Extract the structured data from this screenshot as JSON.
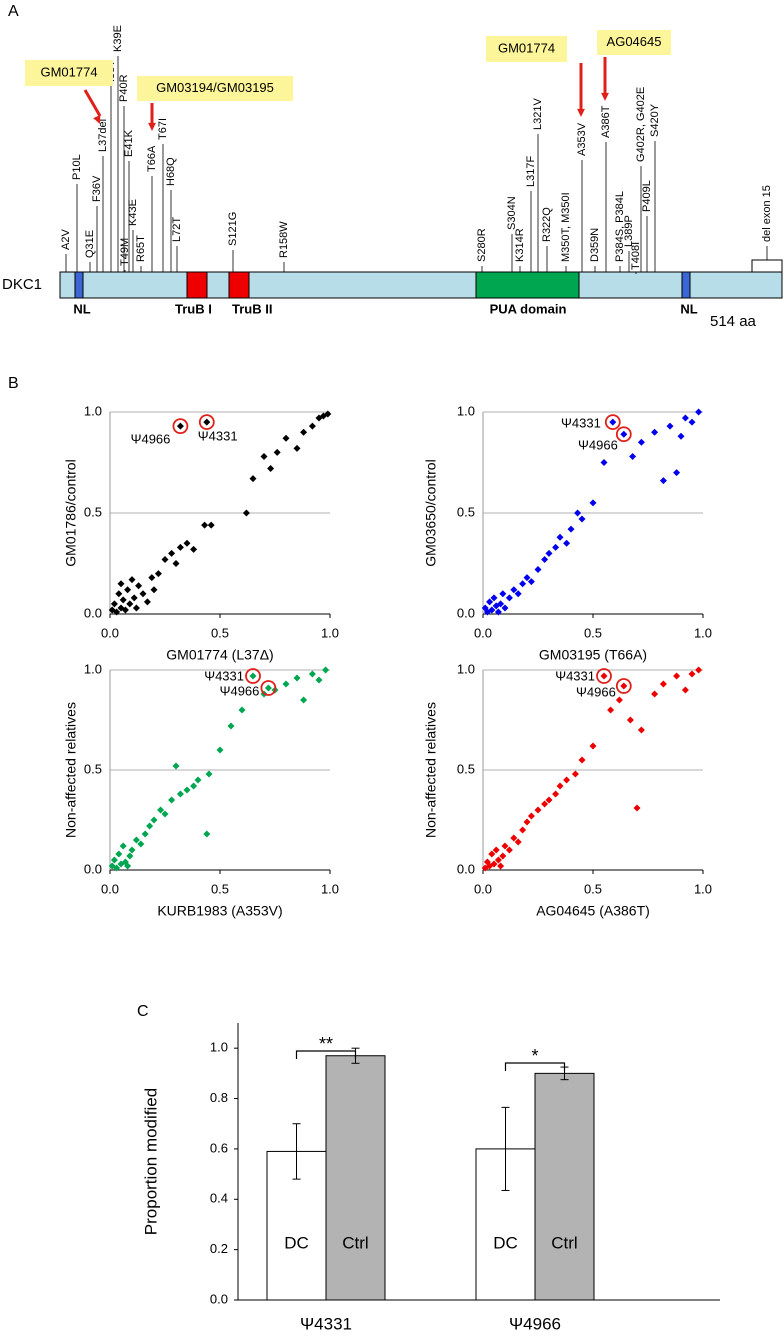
{
  "panels": [
    "A",
    "B",
    "C"
  ],
  "diagram": {
    "gene": "DKC1",
    "length_label": "514 aa",
    "domains": [
      "NL",
      "TruB I",
      "TruB II",
      "PUA domain",
      "NL"
    ],
    "mutations": [
      "A2V",
      "P10L",
      "Q31E",
      "F36V",
      "L37del",
      "I38T",
      "K39E",
      "P40R",
      "E41K",
      "K43E",
      "T49M",
      "R65T",
      "T66A",
      "T67I",
      "H68Q",
      "L72T",
      "S121G",
      "R158W",
      "S280R",
      "S304N",
      "K314R",
      "L317F",
      "L321V",
      "R322Q",
      "M350T, M350I",
      "A353V",
      "D359N",
      "P384S, P384L",
      "A386T",
      "L389P",
      "G402R, G402E",
      "T408I",
      "P409L",
      "S420Y",
      "del exon 15"
    ],
    "callouts": [
      "GM01774",
      "GM03194/GM03195",
      "GM01774",
      "AG04645"
    ]
  },
  "chart_data": [
    {
      "type": "scatter",
      "x_label": "GM01774 (L37Δ)",
      "y_label": "GM01786/control",
      "color": "#000000",
      "xlim": [
        0,
        1
      ],
      "ylim": [
        0,
        1
      ],
      "xticks": [
        {
          "value": 0,
          "label": "0.0"
        },
        0.5,
        {
          "value": 1,
          "label": "1.0"
        }
      ],
      "yticks": [
        {
          "value": 0,
          "label": "0.0"
        },
        0.5,
        {
          "value": 1,
          "label": "1.0"
        }
      ],
      "x": [
        0.01,
        0.02,
        0.03,
        0.04,
        0.05,
        0.05,
        0.06,
        0.07,
        0.08,
        0.09,
        0.1,
        0.11,
        0.12,
        0.13,
        0.15,
        0.17,
        0.19,
        0.2,
        0.22,
        0.25,
        0.28,
        0.3,
        0.32,
        0.35,
        0.38,
        0.43,
        0.46,
        0.62,
        0.65,
        0.7,
        0.73,
        0.76,
        0.8,
        0.85,
        0.88,
        0.92,
        0.95,
        0.97,
        0.99
      ],
      "y": [
        0.02,
        0.05,
        0.01,
        0.1,
        0.03,
        0.15,
        0.07,
        0.02,
        0.12,
        0.05,
        0.17,
        0.08,
        0.03,
        0.14,
        0.1,
        0.06,
        0.18,
        0.12,
        0.2,
        0.27,
        0.3,
        0.25,
        0.33,
        0.35,
        0.32,
        0.44,
        0.44,
        0.5,
        0.67,
        0.78,
        0.72,
        0.8,
        0.87,
        0.82,
        0.9,
        0.93,
        0.97,
        0.98,
        0.99
      ],
      "highlights": [
        {
          "label": "Ψ4966",
          "x": 0.32,
          "y": 0.93
        },
        {
          "label": "Ψ4331",
          "x": 0.44,
          "y": 0.95
        }
      ]
    },
    {
      "type": "scatter",
      "x_label": "GM03195 (T66A)",
      "y_label": "GM03650/control",
      "color": "#0000ee",
      "xlim": [
        0,
        1
      ],
      "ylim": [
        0,
        1
      ],
      "xticks": [
        {
          "value": 0,
          "label": "0.0"
        },
        0.5,
        {
          "value": 1,
          "label": "1.0"
        }
      ],
      "yticks": [
        {
          "value": 0,
          "label": "0.0"
        },
        0.5,
        {
          "value": 1,
          "label": "1.0"
        }
      ],
      "x": [
        0.01,
        0.02,
        0.03,
        0.04,
        0.05,
        0.06,
        0.07,
        0.08,
        0.09,
        0.1,
        0.12,
        0.14,
        0.16,
        0.18,
        0.2,
        0.22,
        0.25,
        0.28,
        0.3,
        0.33,
        0.35,
        0.38,
        0.4,
        0.43,
        0.45,
        0.5,
        0.55,
        0.68,
        0.72,
        0.78,
        0.82,
        0.85,
        0.88,
        0.9,
        0.92,
        0.95,
        0.98
      ],
      "y": [
        0.03,
        0.01,
        0.06,
        0.02,
        0.08,
        0.04,
        0.01,
        0.05,
        0.1,
        0.03,
        0.08,
        0.12,
        0.1,
        0.15,
        0.18,
        0.16,
        0.22,
        0.27,
        0.3,
        0.33,
        0.38,
        0.35,
        0.42,
        0.5,
        0.47,
        0.55,
        0.75,
        0.78,
        0.85,
        0.9,
        0.66,
        0.93,
        0.7,
        0.88,
        0.97,
        0.95,
        1.0
      ],
      "highlights": [
        {
          "label": "Ψ4331",
          "x": 0.59,
          "y": 0.95
        },
        {
          "label": "Ψ4966",
          "x": 0.64,
          "y": 0.89
        }
      ]
    },
    {
      "type": "scatter",
      "x_label": "KURB1983 (A353V)",
      "y_label": "Non-affected relatives",
      "color": "#00a650",
      "xlim": [
        0,
        1
      ],
      "ylim": [
        0,
        1
      ],
      "xticks": [
        {
          "value": 0,
          "label": "0.0"
        },
        0.5,
        {
          "value": 1,
          "label": "1.0"
        }
      ],
      "yticks": [
        {
          "value": 0,
          "label": "0.0"
        },
        0.5,
        {
          "value": 1,
          "label": "1.0"
        }
      ],
      "x": [
        0.01,
        0.02,
        0.03,
        0.04,
        0.05,
        0.06,
        0.07,
        0.08,
        0.09,
        0.1,
        0.12,
        0.14,
        0.16,
        0.18,
        0.2,
        0.23,
        0.25,
        0.28,
        0.3,
        0.32,
        0.35,
        0.38,
        0.4,
        0.44,
        0.45,
        0.5,
        0.55,
        0.6,
        0.7,
        0.75,
        0.8,
        0.85,
        0.88,
        0.92,
        0.95,
        0.98
      ],
      "y": [
        0.02,
        0.05,
        0.01,
        0.08,
        0.03,
        0.12,
        0.04,
        0.02,
        0.07,
        0.1,
        0.15,
        0.13,
        0.18,
        0.22,
        0.25,
        0.3,
        0.28,
        0.35,
        0.52,
        0.38,
        0.4,
        0.42,
        0.45,
        0.18,
        0.48,
        0.6,
        0.72,
        0.8,
        0.88,
        0.9,
        0.93,
        0.96,
        0.85,
        0.98,
        0.95,
        1.0
      ],
      "highlights": [
        {
          "label": "Ψ4331",
          "x": 0.65,
          "y": 0.97
        },
        {
          "label": "Ψ4966",
          "x": 0.72,
          "y": 0.91
        }
      ]
    },
    {
      "type": "scatter",
      "x_label": "AG04645 (A386T)",
      "y_label": "Non-affected relatives",
      "color": "#ee0000",
      "xlim": [
        0,
        1
      ],
      "ylim": [
        0,
        1
      ],
      "xticks": [
        {
          "value": 0,
          "label": "0.0"
        },
        0.5,
        {
          "value": 1,
          "label": "1.0"
        }
      ],
      "yticks": [
        {
          "value": 0,
          "label": "0.0"
        },
        0.5,
        {
          "value": 1,
          "label": "1.0"
        }
      ],
      "x": [
        0.01,
        0.02,
        0.03,
        0.04,
        0.05,
        0.06,
        0.07,
        0.08,
        0.09,
        0.1,
        0.12,
        0.14,
        0.16,
        0.18,
        0.2,
        0.22,
        0.25,
        0.28,
        0.3,
        0.33,
        0.35,
        0.38,
        0.42,
        0.45,
        0.5,
        0.58,
        0.62,
        0.67,
        0.7,
        0.72,
        0.78,
        0.82,
        0.88,
        0.92,
        0.95,
        0.98
      ],
      "y": [
        0.01,
        0.04,
        0.02,
        0.08,
        0.03,
        0.1,
        0.05,
        0.02,
        0.07,
        0.12,
        0.1,
        0.16,
        0.14,
        0.2,
        0.24,
        0.27,
        0.3,
        0.33,
        0.35,
        0.38,
        0.42,
        0.45,
        0.48,
        0.55,
        0.62,
        0.8,
        0.85,
        0.75,
        0.31,
        0.7,
        0.88,
        0.93,
        0.97,
        0.9,
        0.98,
        1.0
      ],
      "highlights": [
        {
          "label": "Ψ4331",
          "x": 0.55,
          "y": 0.97
        },
        {
          "label": "Ψ4966",
          "x": 0.64,
          "y": 0.92
        }
      ]
    },
    {
      "type": "bar",
      "y_label": "Proportion modified",
      "categories": [
        "Ψ4331",
        "Ψ4966"
      ],
      "series": [
        {
          "name": "DC",
          "color": "#ffffff",
          "values": [
            0.59,
            0.6
          ],
          "errors": [
            0.11,
            0.165
          ]
        },
        {
          "name": "Ctrl",
          "color": "#b3b3b3",
          "values": [
            0.97,
            0.9
          ],
          "errors": [
            0.03,
            0.025
          ]
        }
      ],
      "significance": [
        "**",
        "*"
      ],
      "ylim": [
        0,
        1.1
      ],
      "yticks": [
        {
          "value": 0,
          "label": "0.0"
        },
        0.2,
        0.4,
        0.6,
        0.8,
        {
          "value": 1,
          "label": "1.0"
        }
      ]
    }
  ]
}
